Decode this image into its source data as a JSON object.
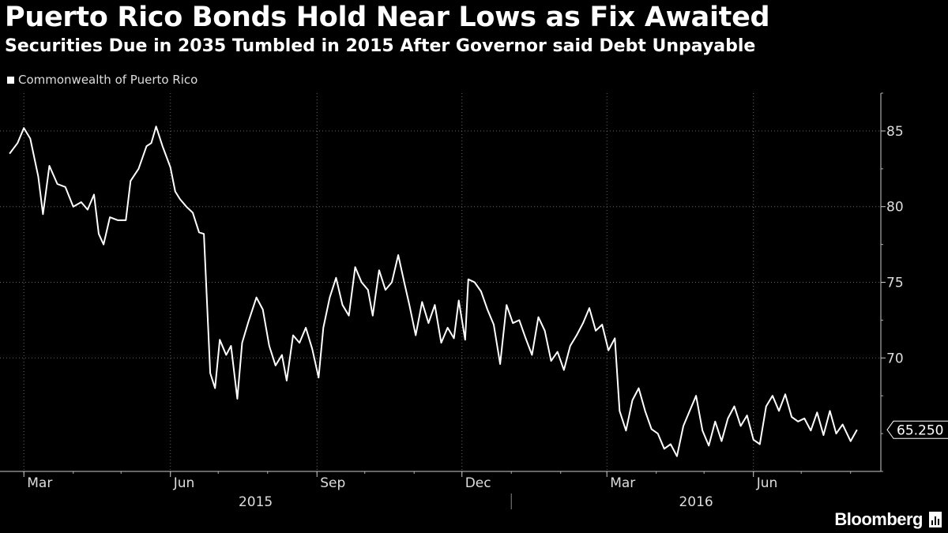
{
  "title": "Puerto Rico Bonds Hold Near Lows as Fix Awaited",
  "subtitle": "Securities Due in 2035 Tumbled in 2015 After Governor said Debt Unpayable",
  "brand": "Bloomberg",
  "chart_data": {
    "type": "line",
    "legend_placement": "top-left",
    "grid": true,
    "ylim": [
      62.5,
      87.5
    ],
    "yticks": [
      70,
      75,
      80,
      85
    ],
    "ytick_labels": [
      "70",
      "75",
      "80",
      "85"
    ],
    "x_range_months": [
      "2015-02",
      "2016-08"
    ],
    "xticks": [
      {
        "label": "Mar",
        "date": "2015-03-01"
      },
      {
        "label": "Jun",
        "date": "2015-06-01"
      },
      {
        "label": "Sep",
        "date": "2015-09-01"
      },
      {
        "label": "Dec",
        "date": "2015-12-01"
      },
      {
        "label": "Mar",
        "date": "2016-03-01"
      },
      {
        "label": "Jun",
        "date": "2016-06-01"
      }
    ],
    "years": [
      "2015",
      "2016"
    ],
    "last_value_label": "65.250",
    "series": [
      {
        "name": "Commonwealth of Puerto Rico",
        "color": "#ffffff",
        "points": [
          [
            "2015-02-20",
            83.5
          ],
          [
            "2015-02-25",
            84.2
          ],
          [
            "2015-03-01",
            85.2
          ],
          [
            "2015-03-05",
            84.5
          ],
          [
            "2015-03-10",
            82.0
          ],
          [
            "2015-03-13",
            79.5
          ],
          [
            "2015-03-17",
            82.7
          ],
          [
            "2015-03-22",
            81.5
          ],
          [
            "2015-03-27",
            81.3
          ],
          [
            "2015-04-01",
            80.0
          ],
          [
            "2015-04-06",
            80.3
          ],
          [
            "2015-04-10",
            79.8
          ],
          [
            "2015-04-14",
            80.8
          ],
          [
            "2015-04-17",
            78.2
          ],
          [
            "2015-04-20",
            77.5
          ],
          [
            "2015-04-24",
            79.3
          ],
          [
            "2015-04-29",
            79.1
          ],
          [
            "2015-05-04",
            79.1
          ],
          [
            "2015-05-07",
            81.7
          ],
          [
            "2015-05-12",
            82.5
          ],
          [
            "2015-05-17",
            84.0
          ],
          [
            "2015-05-20",
            84.2
          ],
          [
            "2015-05-23",
            85.3
          ],
          [
            "2015-05-27",
            84.0
          ],
          [
            "2015-06-01",
            82.6
          ],
          [
            "2015-06-04",
            81.0
          ],
          [
            "2015-06-07",
            80.5
          ],
          [
            "2015-06-11",
            80.0
          ],
          [
            "2015-06-15",
            79.6
          ],
          [
            "2015-06-19",
            78.3
          ],
          [
            "2015-06-22",
            78.2
          ],
          [
            "2015-06-26",
            69.0
          ],
          [
            "2015-06-29",
            68.0
          ],
          [
            "2015-07-02",
            71.2
          ],
          [
            "2015-07-06",
            70.2
          ],
          [
            "2015-07-09",
            70.8
          ],
          [
            "2015-07-13",
            67.3
          ],
          [
            "2015-07-16",
            71.0
          ],
          [
            "2015-07-20",
            72.4
          ],
          [
            "2015-07-25",
            74.0
          ],
          [
            "2015-07-29",
            73.2
          ],
          [
            "2015-08-02",
            70.8
          ],
          [
            "2015-08-06",
            69.5
          ],
          [
            "2015-08-10",
            70.2
          ],
          [
            "2015-08-13",
            68.5
          ],
          [
            "2015-08-17",
            71.5
          ],
          [
            "2015-08-21",
            71.0
          ],
          [
            "2015-08-25",
            72.0
          ],
          [
            "2015-08-29",
            70.6
          ],
          [
            "2015-09-02",
            68.7
          ],
          [
            "2015-09-05",
            72.0
          ],
          [
            "2015-09-09",
            74.0
          ],
          [
            "2015-09-13",
            75.3
          ],
          [
            "2015-09-17",
            73.5
          ],
          [
            "2015-09-21",
            72.8
          ],
          [
            "2015-09-25",
            76.0
          ],
          [
            "2015-09-29",
            75.0
          ],
          [
            "2015-10-03",
            74.5
          ],
          [
            "2015-10-06",
            72.8
          ],
          [
            "2015-10-10",
            75.8
          ],
          [
            "2015-10-14",
            74.5
          ],
          [
            "2015-10-18",
            75.0
          ],
          [
            "2015-10-22",
            76.8
          ],
          [
            "2015-10-26",
            74.9
          ],
          [
            "2015-10-29",
            73.5
          ],
          [
            "2015-11-02",
            71.5
          ],
          [
            "2015-11-06",
            73.7
          ],
          [
            "2015-11-10",
            72.3
          ],
          [
            "2015-11-14",
            73.5
          ],
          [
            "2015-11-18",
            71.0
          ],
          [
            "2015-11-22",
            72.0
          ],
          [
            "2015-11-26",
            71.3
          ],
          [
            "2015-11-29",
            73.8
          ],
          [
            "2015-12-03",
            71.2
          ],
          [
            "2015-12-05",
            75.2
          ],
          [
            "2015-12-09",
            75.0
          ],
          [
            "2015-12-13",
            74.4
          ],
          [
            "2015-12-17",
            73.2
          ],
          [
            "2015-12-21",
            72.2
          ],
          [
            "2015-12-25",
            69.6
          ],
          [
            "2015-12-29",
            73.5
          ],
          [
            "2016-01-02",
            72.3
          ],
          [
            "2016-01-06",
            72.5
          ],
          [
            "2016-01-10",
            71.3
          ],
          [
            "2016-01-14",
            70.2
          ],
          [
            "2016-01-18",
            72.7
          ],
          [
            "2016-01-22",
            71.8
          ],
          [
            "2016-01-26",
            69.8
          ],
          [
            "2016-01-30",
            70.4
          ],
          [
            "2016-02-03",
            69.2
          ],
          [
            "2016-02-07",
            70.8
          ],
          [
            "2016-02-11",
            71.5
          ],
          [
            "2016-02-15",
            72.3
          ],
          [
            "2016-02-19",
            73.3
          ],
          [
            "2016-02-23",
            71.8
          ],
          [
            "2016-02-27",
            72.2
          ],
          [
            "2016-03-02",
            70.5
          ],
          [
            "2016-03-06",
            71.3
          ],
          [
            "2016-03-09",
            66.5
          ],
          [
            "2016-03-13",
            65.2
          ],
          [
            "2016-03-17",
            67.2
          ],
          [
            "2016-03-21",
            68.0
          ],
          [
            "2016-03-25",
            66.5
          ],
          [
            "2016-03-29",
            65.3
          ],
          [
            "2016-04-02",
            65.0
          ],
          [
            "2016-04-06",
            64.0
          ],
          [
            "2016-04-10",
            64.3
          ],
          [
            "2016-04-14",
            63.5
          ],
          [
            "2016-04-18",
            65.5
          ],
          [
            "2016-04-22",
            66.5
          ],
          [
            "2016-04-26",
            67.5
          ],
          [
            "2016-04-30",
            65.2
          ],
          [
            "2016-05-04",
            64.2
          ],
          [
            "2016-05-08",
            65.8
          ],
          [
            "2016-05-12",
            64.5
          ],
          [
            "2016-05-16",
            66.0
          ],
          [
            "2016-05-20",
            66.8
          ],
          [
            "2016-05-24",
            65.5
          ],
          [
            "2016-05-28",
            66.2
          ],
          [
            "2016-06-01",
            64.6
          ],
          [
            "2016-06-05",
            64.3
          ],
          [
            "2016-06-09",
            66.8
          ],
          [
            "2016-06-13",
            67.5
          ],
          [
            "2016-06-17",
            66.5
          ],
          [
            "2016-06-21",
            67.6
          ],
          [
            "2016-06-25",
            66.1
          ],
          [
            "2016-06-29",
            65.8
          ],
          [
            "2016-07-03",
            66.0
          ],
          [
            "2016-07-07",
            65.2
          ],
          [
            "2016-07-11",
            66.4
          ],
          [
            "2016-07-15",
            64.9
          ],
          [
            "2016-07-19",
            66.5
          ],
          [
            "2016-07-23",
            65.0
          ],
          [
            "2016-07-27",
            65.6
          ],
          [
            "2016-08-01",
            64.5
          ],
          [
            "2016-08-05",
            65.25
          ]
        ]
      }
    ]
  }
}
